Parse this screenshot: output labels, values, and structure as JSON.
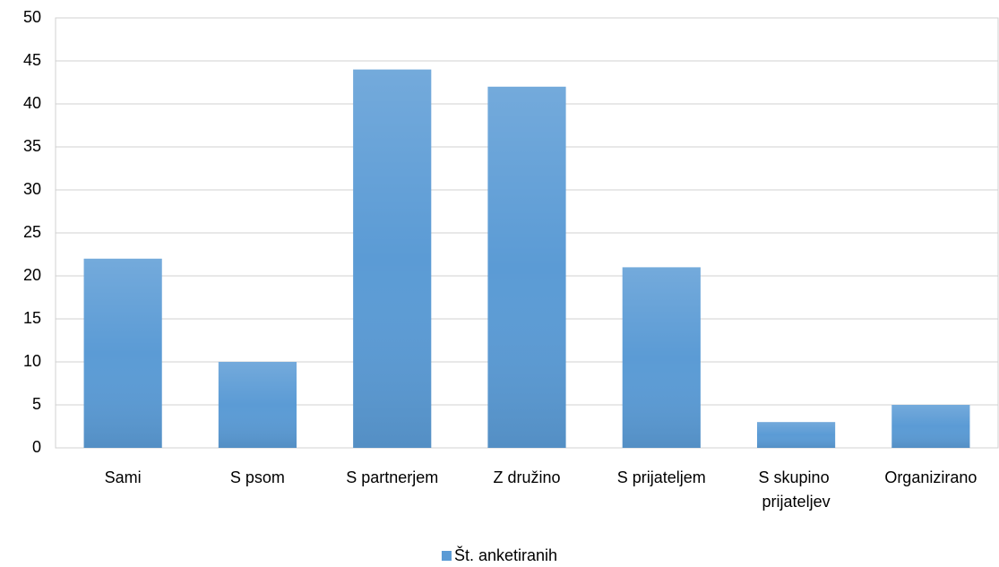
{
  "chart_data": {
    "type": "bar",
    "categories": [
      "Sami",
      "S psom",
      "S partnerjem",
      "Z družino",
      "S prijateljem",
      "S skupino prijateljev",
      "Organizirano"
    ],
    "series": [
      {
        "name": "Št. anketiranih",
        "color": "#5b9bd5",
        "values": [
          22,
          10,
          44,
          42,
          21,
          3,
          5
        ]
      }
    ],
    "ylim": [
      0,
      50
    ],
    "yticks": [
      0,
      5,
      10,
      15,
      20,
      25,
      30,
      35,
      40,
      45,
      50
    ],
    "grid": true,
    "legend": "bottom"
  }
}
